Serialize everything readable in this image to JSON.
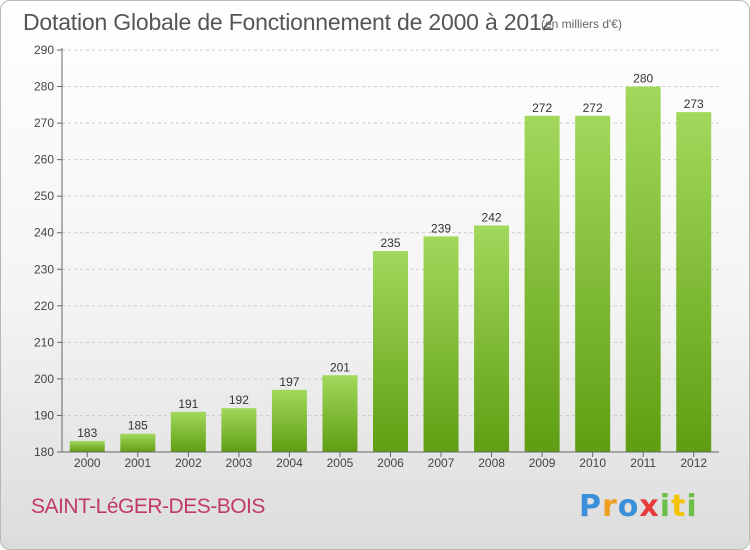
{
  "header": {
    "title": "Dotation Globale de Fonctionnement de 2000 à 2012",
    "unit_note": "(en milliers d'€)"
  },
  "footer": {
    "town_name": "SAINT-LéGER-DES-BOIS",
    "logo_text": "Proxiti"
  },
  "colors": {
    "bar_light": "#a2d85c",
    "bar_dark": "#5f9e12",
    "axis": "#666666",
    "grid": "#cccccc",
    "town": "#c0396b"
  },
  "chart_data": {
    "type": "bar",
    "title": "Dotation Globale de Fonctionnement de 2000 à 2012",
    "subtitle": "(en milliers d'€)",
    "xlabel": "",
    "ylabel": "",
    "categories": [
      "2000",
      "2001",
      "2002",
      "2003",
      "2004",
      "2005",
      "2006",
      "2007",
      "2008",
      "2009",
      "2010",
      "2011",
      "2012"
    ],
    "values": [
      183,
      185,
      191,
      192,
      197,
      201,
      235,
      239,
      242,
      272,
      272,
      280,
      273
    ],
    "ylim": [
      180,
      290
    ],
    "yticks": [
      180,
      190,
      200,
      210,
      220,
      230,
      240,
      250,
      260,
      270,
      280,
      290
    ],
    "grid": "horizontal-dashed",
    "data_labels": true,
    "legend": "none"
  }
}
